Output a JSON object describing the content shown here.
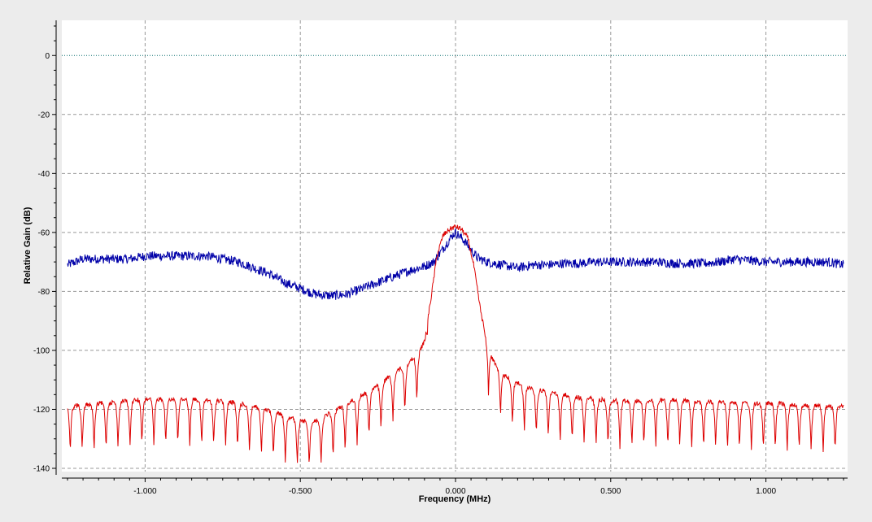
{
  "chart_data": {
    "type": "line",
    "title": "",
    "xlabel": "Frequency (MHz)",
    "ylabel": "Relative Gain (dB)",
    "xlim": [
      -1.25,
      1.25
    ],
    "ylim": [
      -140,
      10
    ],
    "x_ticks": [
      -1.0,
      -0.5,
      0.0,
      0.5,
      1.0
    ],
    "x_tick_labels": [
      "-1.000",
      "-0.500",
      "0.000",
      "0.500",
      "1.000"
    ],
    "y_ticks": [
      0,
      -20,
      -40,
      -60,
      -80,
      -100,
      -120,
      -140
    ],
    "y_tick_labels": [
      "0",
      "-20",
      "-40",
      "-60",
      "-80",
      "-100",
      "-120",
      "-140"
    ],
    "grid": true,
    "colors": {
      "background": "#ececec",
      "plot_area": "#ffffff",
      "grid": "#999999",
      "reference": "#006a6a"
    },
    "reference_line": {
      "y": 0,
      "style": "dotted"
    },
    "series": [
      {
        "color": "#0000a8",
        "x": [
          -1.25,
          -1.2,
          -1.15,
          -1.1,
          -1.05,
          -1.0,
          -0.95,
          -0.9,
          -0.85,
          -0.8,
          -0.75,
          -0.7,
          -0.65,
          -0.6,
          -0.55,
          -0.5,
          -0.45,
          -0.4,
          -0.35,
          -0.3,
          -0.25,
          -0.2,
          -0.15,
          -0.1,
          -0.07,
          -0.05,
          -0.03,
          -0.01,
          0.0,
          0.01,
          0.03,
          0.05,
          0.07,
          0.1,
          0.15,
          0.2,
          0.25,
          0.3,
          0.35,
          0.4,
          0.45,
          0.5,
          0.55,
          0.6,
          0.65,
          0.7,
          0.75,
          0.8,
          0.85,
          0.9,
          0.95,
          1.0,
          1.05,
          1.1,
          1.15,
          1.2,
          1.25
        ],
        "y": [
          -71,
          -69,
          -69,
          -69,
          -69,
          -68,
          -68,
          -68,
          -68,
          -68,
          -69,
          -70,
          -72,
          -74,
          -77,
          -79,
          -81,
          -81.5,
          -81,
          -79,
          -77,
          -75,
          -73,
          -71.5,
          -70,
          -67,
          -64,
          -61,
          -60,
          -61,
          -63,
          -66,
          -68.5,
          -70,
          -71,
          -72,
          -71,
          -71,
          -70.5,
          -70.5,
          -70,
          -70,
          -70,
          -70,
          -70,
          -70.5,
          -70.5,
          -70.5,
          -70,
          -69,
          -69.5,
          -70,
          -70,
          -70,
          -70,
          -70,
          -71
        ]
      },
      {
        "color": "#dd0000",
        "x": [
          -1.25,
          -1.2,
          -1.15,
          -1.1,
          -1.05,
          -1.0,
          -0.95,
          -0.9,
          -0.85,
          -0.8,
          -0.75,
          -0.7,
          -0.65,
          -0.6,
          -0.55,
          -0.5,
          -0.45,
          -0.4,
          -0.35,
          -0.3,
          -0.25,
          -0.2,
          -0.15,
          -0.12,
          -0.1,
          -0.08,
          -0.06,
          -0.04,
          -0.02,
          0.0,
          0.02,
          0.04,
          0.06,
          0.08,
          0.1,
          0.12,
          0.15,
          0.2,
          0.25,
          0.3,
          0.35,
          0.4,
          0.45,
          0.5,
          0.55,
          0.6,
          0.65,
          0.7,
          0.75,
          0.8,
          0.85,
          0.9,
          0.95,
          1.0,
          1.05,
          1.1,
          1.15,
          1.2,
          1.25
        ],
        "y": [
          -119,
          -118.5,
          -118,
          -117.5,
          -117,
          -116.5,
          -116.5,
          -116.5,
          -116.5,
          -117,
          -117,
          -118,
          -119,
          -120.5,
          -122,
          -124,
          -124,
          -121,
          -118,
          -115,
          -112,
          -108,
          -104,
          -101,
          -97,
          -83,
          -68,
          -61,
          -59,
          -58,
          -59,
          -62,
          -72,
          -86,
          -97,
          -103,
          -108,
          -111,
          -113,
          -114,
          -115,
          -116,
          -116.5,
          -117,
          -117,
          -117,
          -117,
          -117,
          -117,
          -117.5,
          -117.5,
          -117.5,
          -118,
          -118,
          -118,
          -118.5,
          -118.5,
          -119,
          -119
        ]
      }
    ]
  }
}
